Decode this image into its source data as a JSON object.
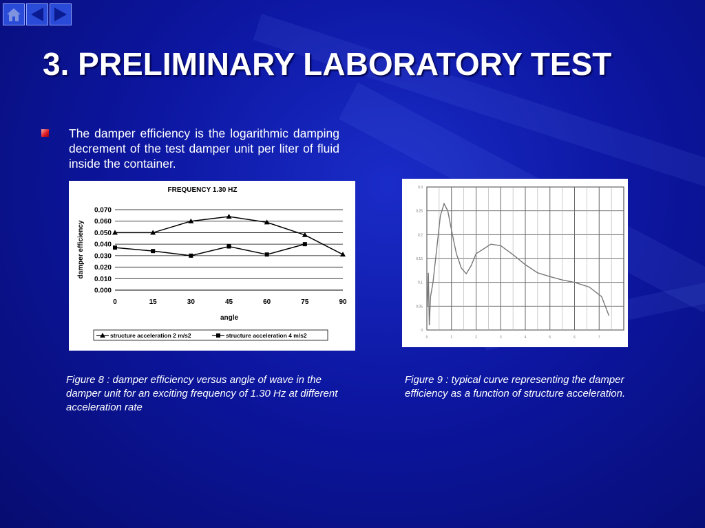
{
  "slide": {
    "title": "3. PRELIMINARY LABORATORY TEST",
    "bullet_text": "The damper efficiency is the logarithmic damping decrement of the test damper unit per liter of fluid inside the container.",
    "figure8_caption": "Figure 8 : damper efficiency versus angle of wave in the damper unit for an exciting frequency of 1.30 Hz at different acceleration rate",
    "figure9_caption": "Figure 9 : typical curve representing the damper efficiency as a function of structure acceleration."
  },
  "nav": {
    "home_icon": "home-icon",
    "prev_icon": "arrow-left-icon",
    "next_icon": "arrow-right-icon"
  },
  "colors": {
    "background": "#0c16a0",
    "nav_button": "#2a4bd8",
    "bullet": "#e0202a"
  },
  "chart_data": [
    {
      "type": "line",
      "title": "FREQUENCY 1.30 HZ",
      "xlabel": "angle",
      "ylabel": "damper efficiency",
      "x": [
        0,
        15,
        30,
        45,
        60,
        75,
        90
      ],
      "x_ticks": [
        "0",
        "15",
        "30",
        "45",
        "60",
        "75",
        "90"
      ],
      "y_ticks": [
        "0.000",
        "0.010",
        "0.020",
        "0.030",
        "0.040",
        "0.050",
        "0.060",
        "0.070"
      ],
      "ylim": [
        0,
        0.07
      ],
      "grid": true,
      "legend_position": "bottom",
      "series": [
        {
          "name": "structure acceleration 2 m/s2",
          "marker": "triangle",
          "values": [
            0.05,
            0.05,
            0.06,
            0.064,
            0.059,
            0.048,
            0.031
          ]
        },
        {
          "name": "structure acceleration 4 m/s2",
          "marker": "square",
          "values": [
            0.037,
            0.034,
            0.03,
            0.038,
            0.031,
            0.04,
            null
          ]
        }
      ]
    },
    {
      "type": "line",
      "title": "",
      "xlabel": "",
      "ylabel": "",
      "xlim": [
        0,
        8
      ],
      "ylim": [
        0,
        0.3
      ],
      "grid": true,
      "x_ticks": [
        "0",
        "1",
        "2",
        "3",
        "4",
        "5",
        "6",
        "7"
      ],
      "y_ticks": [
        "0",
        "0.05",
        "0.1",
        "0.15",
        "0.2",
        "0.25",
        "0.3"
      ],
      "series": [
        {
          "x": [
            0.02,
            0.06,
            0.1,
            0.15,
            0.25,
            0.55,
            0.7,
            0.85,
            1.0,
            1.2,
            1.4,
            1.6,
            1.8,
            2.0,
            2.3,
            2.6,
            3.0,
            3.5,
            4.0,
            4.5,
            5.0,
            5.5,
            6.0,
            6.6,
            7.1,
            7.4
          ],
          "y": [
            0.05,
            0.12,
            0.01,
            0.07,
            0.1,
            0.24,
            0.265,
            0.25,
            0.21,
            0.16,
            0.13,
            0.118,
            0.135,
            0.16,
            0.17,
            0.18,
            0.177,
            0.158,
            0.137,
            0.12,
            0.112,
            0.105,
            0.1,
            0.09,
            0.07,
            0.03
          ]
        }
      ]
    }
  ]
}
